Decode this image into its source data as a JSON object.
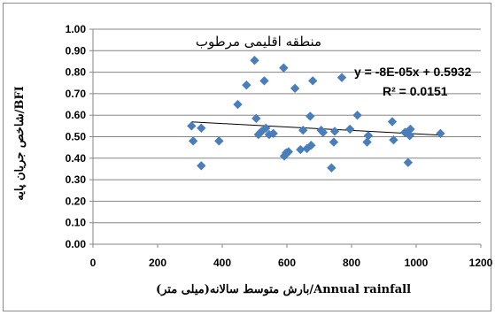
{
  "chart_data": {
    "type": "scatter",
    "title": "منطقه اقلیمی مرطوب",
    "xlabel": "بارش متوسط سالانه(میلی متر)/Annual rainfall",
    "ylabel": "شاخص جریان پایه/BFI",
    "xlim": [
      0,
      1200
    ],
    "ylim": [
      0,
      1.0
    ],
    "x_ticks": [
      "0",
      "200",
      "400",
      "600",
      "800",
      "1000",
      "1200"
    ],
    "y_ticks": [
      "0.00",
      "0.10",
      "0.20",
      "0.30",
      "0.40",
      "0.50",
      "0.60",
      "0.70",
      "0.80",
      "0.90",
      "1.00"
    ],
    "grid": "horizontal",
    "marker_color": "#4a7ebb",
    "trend_color": "#000000",
    "points": [
      {
        "x": 305,
        "y": 0.55
      },
      {
        "x": 310,
        "y": 0.48
      },
      {
        "x": 335,
        "y": 0.54
      },
      {
        "x": 335,
        "y": 0.365
      },
      {
        "x": 390,
        "y": 0.48
      },
      {
        "x": 448,
        "y": 0.65
      },
      {
        "x": 475,
        "y": 0.74
      },
      {
        "x": 500,
        "y": 0.855
      },
      {
        "x": 505,
        "y": 0.585
      },
      {
        "x": 512,
        "y": 0.51
      },
      {
        "x": 522,
        "y": 0.525
      },
      {
        "x": 530,
        "y": 0.76
      },
      {
        "x": 535,
        "y": 0.54
      },
      {
        "x": 545,
        "y": 0.51
      },
      {
        "x": 558,
        "y": 0.515
      },
      {
        "x": 590,
        "y": 0.82
      },
      {
        "x": 592,
        "y": 0.41
      },
      {
        "x": 598,
        "y": 0.425
      },
      {
        "x": 605,
        "y": 0.43
      },
      {
        "x": 625,
        "y": 0.725
      },
      {
        "x": 642,
        "y": 0.44
      },
      {
        "x": 650,
        "y": 0.53
      },
      {
        "x": 662,
        "y": 0.445
      },
      {
        "x": 672,
        "y": 0.595
      },
      {
        "x": 675,
        "y": 0.46
      },
      {
        "x": 680,
        "y": 0.76
      },
      {
        "x": 706,
        "y": 0.53
      },
      {
        "x": 712,
        "y": 0.52
      },
      {
        "x": 738,
        "y": 0.355
      },
      {
        "x": 745,
        "y": 0.475
      },
      {
        "x": 748,
        "y": 0.525
      },
      {
        "x": 770,
        "y": 0.775
      },
      {
        "x": 795,
        "y": 0.535
      },
      {
        "x": 818,
        "y": 0.6
      },
      {
        "x": 848,
        "y": 0.475
      },
      {
        "x": 852,
        "y": 0.505
      },
      {
        "x": 926,
        "y": 0.57
      },
      {
        "x": 930,
        "y": 0.485
      },
      {
        "x": 965,
        "y": 0.52
      },
      {
        "x": 970,
        "y": 0.52
      },
      {
        "x": 975,
        "y": 0.38
      },
      {
        "x": 980,
        "y": 0.505
      },
      {
        "x": 982,
        "y": 0.535
      },
      {
        "x": 1075,
        "y": 0.515
      }
    ],
    "trendline": {
      "slope": -8e-05,
      "intercept": 0.5932,
      "x_range": [
        305,
        1075
      ]
    },
    "annotations": {
      "equation": "y = -8E-05x + 0.5932",
      "r_squared": "R² = 0.0151"
    }
  }
}
